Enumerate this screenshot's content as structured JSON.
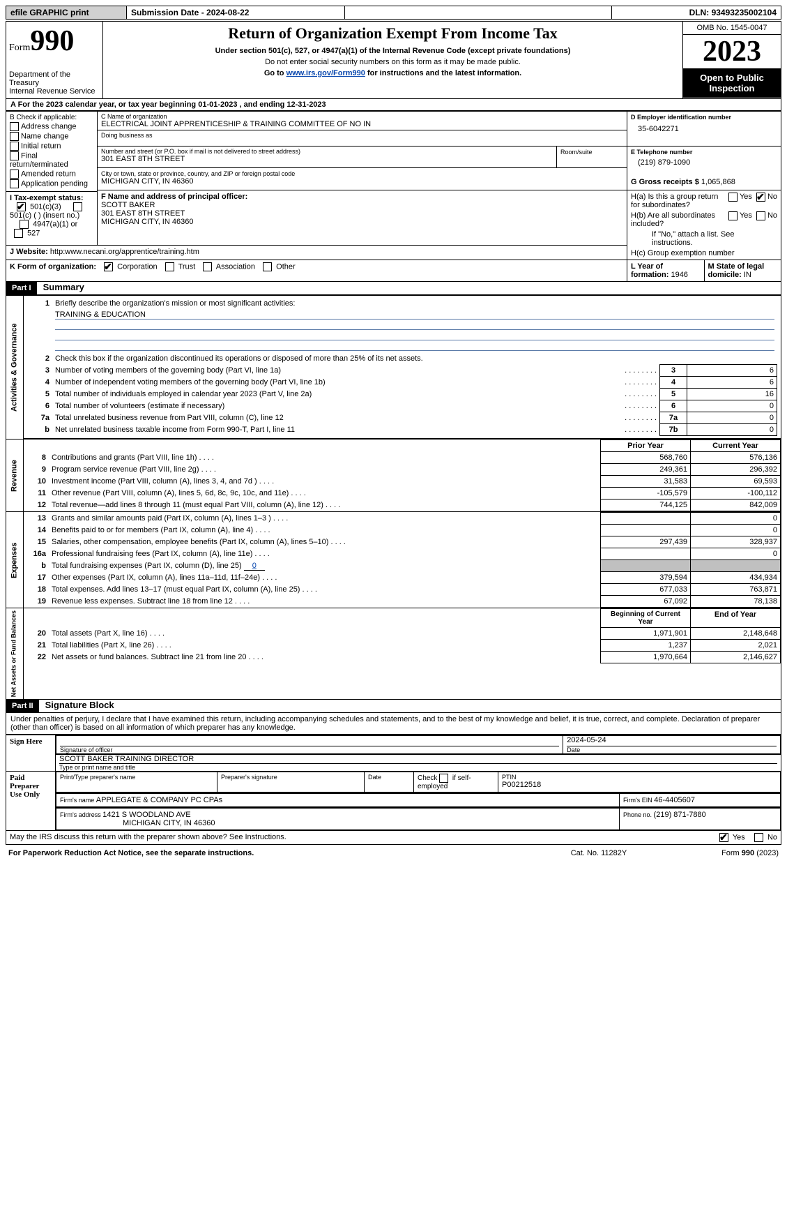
{
  "topbar": {
    "efile": "efile GRAPHIC print",
    "submission_label": "Submission Date - ",
    "submission_date": "2024-08-22",
    "dln_label": "DLN: ",
    "dln": "93493235002104"
  },
  "header": {
    "form_word": "Form",
    "form_num": "990",
    "dept": "Department of the Treasury\nInternal Revenue Service",
    "title": "Return of Organization Exempt From Income Tax",
    "sub1": "Under section 501(c), 527, or 4947(a)(1) of the Internal Revenue Code (except private foundations)",
    "sub2": "Do not enter social security numbers on this form as it may be made public.",
    "sub3_pre": "Go to ",
    "sub3_link": "www.irs.gov/Form990",
    "sub3_post": " for instructions and the latest information.",
    "omb": "OMB No. 1545-0047",
    "year": "2023",
    "open": "Open to Public Inspection"
  },
  "lineA": {
    "pre": "A For the 2023 calendar year, or tax year beginning ",
    "begin": "01-01-2023",
    "mid": "   , and ending ",
    "end": "12-31-2023"
  },
  "boxB": {
    "title": "B Check if applicable:",
    "items": [
      "Address change",
      "Name change",
      "Initial return",
      "Final return/terminated",
      "Amended return",
      "Application pending"
    ]
  },
  "boxC": {
    "name_label": "C Name of organization",
    "name": "ELECTRICAL JOINT APPRENTICESHIP & TRAINING COMMITTEE OF NO IN",
    "dba_label": "Doing business as",
    "addr_label": "Number and street (or P.O. box if mail is not delivered to street address)",
    "addr": "301 EAST 8TH STREET",
    "room_label": "Room/suite",
    "city_label": "City or town, state or province, country, and ZIP or foreign postal code",
    "city": "MICHIGAN CITY, IN  46360"
  },
  "boxD": {
    "label": "D Employer identification number",
    "val": "35-6042271"
  },
  "boxE": {
    "label": "E Telephone number",
    "val": "(219) 879-1090"
  },
  "boxG": {
    "label": "G Gross receipts $ ",
    "val": "1,065,868"
  },
  "boxF": {
    "label": "F  Name and address of principal officer:",
    "name": "SCOTT BAKER",
    "addr1": "301 EAST 8TH STREET",
    "addr2": "MICHIGAN CITY, IN  46360"
  },
  "boxH": {
    "a_label": "H(a)  Is this a group return for subordinates?",
    "b_label": "H(b)  Are all subordinates included?",
    "b_note": "If \"No,\" attach a list. See instructions.",
    "c_label": "H(c)  Group exemption number ",
    "yes": "Yes",
    "no": "No"
  },
  "lineI": {
    "label": "I    Tax-exempt status:",
    "o1": "501(c)(3)",
    "o2": "501(c) (   ) (insert no.)",
    "o3": "4947(a)(1) or",
    "o4": "527"
  },
  "lineJ": {
    "label": "J    Website: ",
    "val": "http:www.necani.org/apprentice/training.htm"
  },
  "lineK": {
    "label": "K Form of organization:",
    "o1": "Corporation",
    "o2": "Trust",
    "o3": "Association",
    "o4": "Other"
  },
  "lineL": {
    "label": "L Year of formation: ",
    "val": "1946"
  },
  "lineM": {
    "label": "M State of legal domicile: ",
    "val": "IN"
  },
  "part1": {
    "tag": "Part I",
    "title": "Summary",
    "side_gov": "Activities & Governance",
    "side_rev": "Revenue",
    "side_exp": "Expenses",
    "side_net": "Net Assets or Fund Balances",
    "l1": "Briefly describe the organization's mission or most significant activities:",
    "l1val": "TRAINING & EDUCATION",
    "l2": "Check this box         if the organization discontinued its operations or disposed of more than 25% of its net assets.",
    "rows_gov": [
      {
        "n": "3",
        "t": "Number of voting members of the governing body (Part VI, line 1a)",
        "box": "3",
        "v": "6"
      },
      {
        "n": "4",
        "t": "Number of independent voting members of the governing body (Part VI, line 1b)",
        "box": "4",
        "v": "6"
      },
      {
        "n": "5",
        "t": "Total number of individuals employed in calendar year 2023 (Part V, line 2a)",
        "box": "5",
        "v": "16"
      },
      {
        "n": "6",
        "t": "Total number of volunteers (estimate if necessary)",
        "box": "6",
        "v": "0"
      },
      {
        "n": "7a",
        "t": "Total unrelated business revenue from Part VIII, column (C), line 12",
        "box": "7a",
        "v": "0"
      },
      {
        "n": "b",
        "t": "Net unrelated business taxable income from Form 990-T, Part I, line 11",
        "box": "7b",
        "v": "0"
      }
    ],
    "col_prior": "Prior Year",
    "col_current": "Current Year",
    "rows_rev": [
      {
        "n": "8",
        "t": "Contributions and grants (Part VIII, line 1h)",
        "p": "568,760",
        "c": "576,136"
      },
      {
        "n": "9",
        "t": "Program service revenue (Part VIII, line 2g)",
        "p": "249,361",
        "c": "296,392"
      },
      {
        "n": "10",
        "t": "Investment income (Part VIII, column (A), lines 3, 4, and 7d )",
        "p": "31,583",
        "c": "69,593"
      },
      {
        "n": "11",
        "t": "Other revenue (Part VIII, column (A), lines 5, 6d, 8c, 9c, 10c, and 11e)",
        "p": "-105,579",
        "c": "-100,112"
      },
      {
        "n": "12",
        "t": "Total revenue—add lines 8 through 11 (must equal Part VIII, column (A), line 12)",
        "p": "744,125",
        "c": "842,009"
      }
    ],
    "rows_exp": [
      {
        "n": "13",
        "t": "Grants and similar amounts paid (Part IX, column (A), lines 1–3 )",
        "p": "",
        "c": "0"
      },
      {
        "n": "14",
        "t": "Benefits paid to or for members (Part IX, column (A), line 4)",
        "p": "",
        "c": "0"
      },
      {
        "n": "15",
        "t": "Salaries, other compensation, employee benefits (Part IX, column (A), lines 5–10)",
        "p": "297,439",
        "c": "328,937"
      },
      {
        "n": "16a",
        "t": "Professional fundraising fees (Part IX, column (A), line 11e)",
        "p": "",
        "c": "0"
      }
    ],
    "l16b_pre": "Total fundraising expenses (Part IX, column (D), line 25) ",
    "l16b_val": "0",
    "rows_exp2": [
      {
        "n": "17",
        "t": "Other expenses (Part IX, column (A), lines 11a–11d, 11f–24e)",
        "p": "379,594",
        "c": "434,934"
      },
      {
        "n": "18",
        "t": "Total expenses. Add lines 13–17 (must equal Part IX, column (A), line 25)",
        "p": "677,033",
        "c": "763,871"
      },
      {
        "n": "19",
        "t": "Revenue less expenses. Subtract line 18 from line 12",
        "p": "67,092",
        "c": "78,138"
      }
    ],
    "col_begin": "Beginning of Current Year",
    "col_end": "End of Year",
    "rows_net": [
      {
        "n": "20",
        "t": "Total assets (Part X, line 16)",
        "p": "1,971,901",
        "c": "2,148,648"
      },
      {
        "n": "21",
        "t": "Total liabilities (Part X, line 26)",
        "p": "1,237",
        "c": "2,021"
      },
      {
        "n": "22",
        "t": "Net assets or fund balances. Subtract line 21 from line 20",
        "p": "1,970,664",
        "c": "2,146,627"
      }
    ]
  },
  "part2": {
    "tag": "Part II",
    "title": "Signature Block",
    "perjury": "Under penalties of perjury, I declare that I have examined this return, including accompanying schedules and statements, and to the best of my knowledge and belief, it is true, correct, and complete. Declaration of preparer (other than officer) is based on all information of which preparer has any knowledge.",
    "sign_here": "Sign Here",
    "date_val": "2024-05-24",
    "sig_officer_label": "Signature of officer",
    "sig_date_label": "Date",
    "officer_name": "SCOTT BAKER  TRAINING DIRECTOR",
    "type_label": "Type or print name and title",
    "paid": "Paid Preparer Use Only",
    "p_name_label": "Print/Type preparer's name",
    "p_sig_label": "Preparer's signature",
    "p_date_label": "Date",
    "p_self_label": "Check          if self-employed",
    "ptin_label": "PTIN",
    "ptin": "P00212518",
    "firm_name_label": "Firm's name   ",
    "firm_name": "APPLEGATE & COMPANY PC CPAs",
    "firm_ein_label": "Firm's EIN  ",
    "firm_ein": "46-4405607",
    "firm_addr_label": "Firm's address ",
    "firm_addr1": "1421 S WOODLAND AVE",
    "firm_addr2": "MICHIGAN CITY, IN  46360",
    "phone_label": "Phone no. ",
    "phone": "(219) 871-7880",
    "discuss": "May the IRS discuss this return with the preparer shown above? See Instructions.",
    "yes": "Yes",
    "no": "No"
  },
  "footer": {
    "left": "For Paperwork Reduction Act Notice, see the separate instructions.",
    "mid": "Cat. No. 11282Y",
    "right_pre": "Form ",
    "right_form": "990",
    "right_post": " (2023)"
  }
}
